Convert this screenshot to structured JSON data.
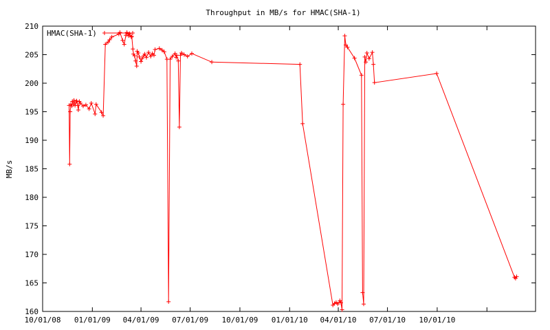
{
  "chart_data": {
    "type": "line",
    "title": "Throughput in MB/s for HMAC(SHA-1)",
    "xlabel": "",
    "ylabel": "MB/s",
    "x_tick_labels": [
      "10/01/08",
      "01/01/09",
      "04/01/09",
      "07/01/09",
      "10/01/09",
      "01/01/10",
      "04/01/10",
      "07/01/10",
      "10/01/10"
    ],
    "y_tick_labels": [
      "160",
      "165",
      "170",
      "175",
      "180",
      "185",
      "190",
      "195",
      "200",
      "205",
      "210"
    ],
    "xlim": [
      "2008-10-01",
      "2011-04-01"
    ],
    "ylim": [
      160,
      210
    ],
    "grid": false,
    "legend_position": "top-left",
    "series": [
      {
        "name": "HMAC(SHA-1)",
        "color": "#ff0000",
        "marker": "plus",
        "x": [
          "2008-11-19",
          "2008-11-20",
          "2008-11-21",
          "2008-11-22",
          "2008-11-24",
          "2008-11-25",
          "2008-11-27",
          "2008-11-28",
          "2008-11-30",
          "2008-12-02",
          "2008-12-03",
          "2008-12-05",
          "2008-12-06",
          "2008-12-08",
          "2008-12-10",
          "2008-12-15",
          "2008-12-20",
          "2008-12-26",
          "2008-12-30",
          "2009-01-06",
          "2009-01-08",
          "2009-01-18",
          "2009-01-21",
          "2009-01-25",
          "2009-01-30",
          "2009-02-02",
          "2009-02-06",
          "2009-02-19",
          "2009-02-21",
          "2009-02-26",
          "2009-03-01",
          "2009-03-04",
          "2009-03-06",
          "2009-03-09",
          "2009-03-11",
          "2009-03-14",
          "2009-03-15",
          "2009-03-17",
          "2009-03-18",
          "2009-03-20",
          "2009-03-22",
          "2009-03-24",
          "2009-03-25",
          "2009-03-27",
          "2009-03-29",
          "2009-04-01",
          "2009-04-03",
          "2009-04-06",
          "2009-04-08",
          "2009-04-11",
          "2009-04-15",
          "2009-04-19",
          "2009-04-22",
          "2009-04-25",
          "2009-04-27",
          "2009-05-05",
          "2009-05-10",
          "2009-05-14",
          "2009-05-19",
          "2009-05-22",
          "2009-05-25",
          "2009-05-29",
          "2009-06-03",
          "2009-06-05",
          "2009-06-06",
          "2009-06-09",
          "2009-06-11",
          "2009-06-13",
          "2009-06-15",
          "2009-06-20",
          "2009-06-26",
          "2009-07-04",
          "2009-08-10",
          "2010-01-20",
          "2010-01-25",
          "2010-03-22",
          "2010-03-25",
          "2010-03-28",
          "2010-03-31",
          "2010-04-04",
          "2010-04-06",
          "2010-04-08",
          "2010-04-10",
          "2010-04-13",
          "2010-04-15",
          "2010-04-18",
          "2010-05-01",
          "2010-05-14",
          "2010-05-16",
          "2010-05-18",
          "2010-05-20",
          "2010-05-22",
          "2010-05-24",
          "2010-05-28",
          "2010-06-03",
          "2010-06-05",
          "2010-06-07",
          "2010-09-30",
          "2011-02-21",
          "2011-02-23",
          "2011-02-25"
        ],
        "y": [
          196.1,
          185.8,
          195.0,
          196.3,
          196.0,
          196.8,
          196.3,
          197.0,
          196.1,
          196.7,
          196.9,
          196.1,
          195.3,
          196.8,
          196.5,
          196.0,
          196.2,
          195.5,
          196.5,
          194.6,
          196.3,
          194.9,
          194.3,
          206.8,
          207.2,
          207.6,
          208.1,
          208.6,
          208.9,
          207.5,
          206.8,
          208.4,
          208.9,
          208.3,
          208.7,
          208.1,
          208.2,
          206.0,
          205.1,
          204.8,
          203.9,
          203.0,
          205.6,
          205.3,
          204.6,
          203.8,
          204.3,
          204.8,
          205.1,
          204.5,
          205.4,
          204.7,
          205.2,
          204.9,
          205.9,
          206.1,
          205.8,
          205.5,
          204.2,
          161.7,
          204.2,
          204.7,
          205.2,
          204.5,
          204.9,
          203.9,
          192.3,
          204.9,
          205.3,
          205.0,
          204.7,
          205.2,
          203.7,
          203.3,
          192.9,
          161.1,
          161.4,
          161.6,
          161.3,
          161.9,
          161.5,
          160.3,
          196.3,
          208.3,
          206.7,
          206.3,
          204.4,
          201.4,
          163.3,
          161.3,
          204.6,
          203.7,
          205.3,
          204.3,
          205.4,
          203.3,
          200.1,
          201.7,
          166.0,
          165.8,
          166.1
        ]
      }
    ]
  }
}
